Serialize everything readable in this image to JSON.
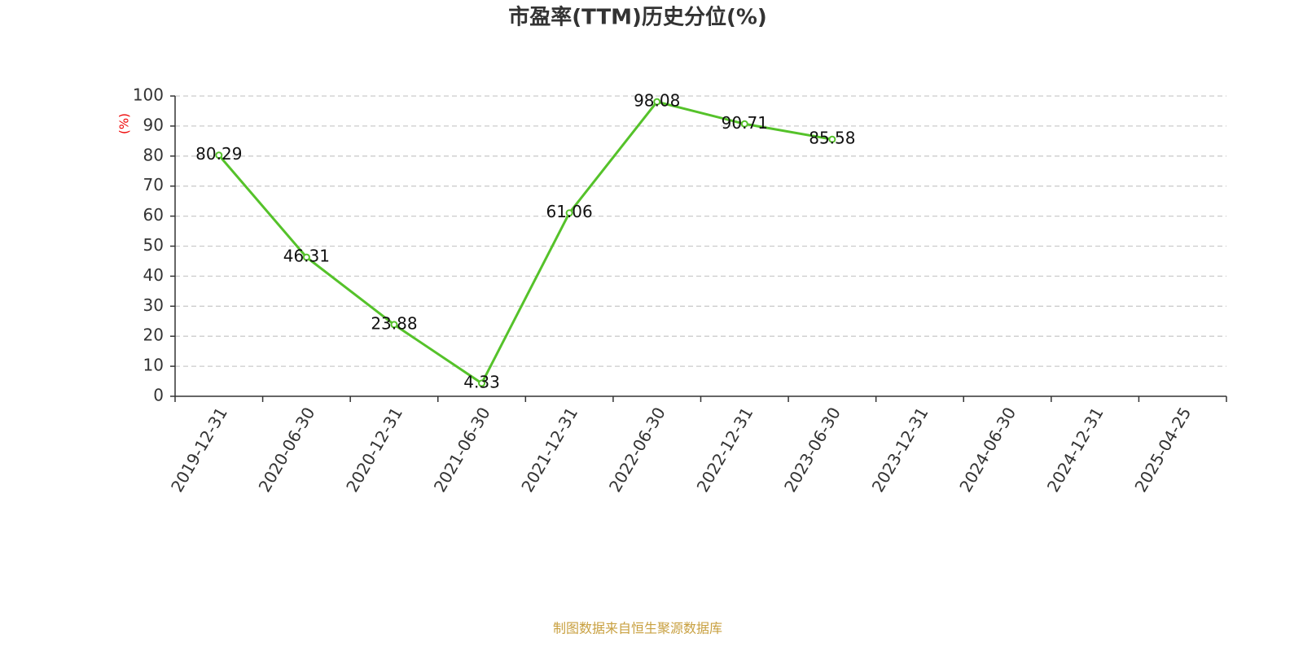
{
  "chart_data": {
    "type": "line",
    "title": "市盈率(TTM)历史分位(%)",
    "y_label": "(%)",
    "categories": [
      "2019-12-31",
      "2020-06-30",
      "2020-12-31",
      "2021-06-30",
      "2021-12-31",
      "2022-06-30",
      "2022-12-31",
      "2023-06-30",
      "2023-12-31",
      "2024-06-30",
      "2024-12-31",
      "2025-04-25"
    ],
    "series": [
      {
        "name": "市盈率(TTM)历史分位",
        "color": "#55c22a",
        "values": [
          80.29,
          46.31,
          23.88,
          4.33,
          61.06,
          98.08,
          90.71,
          85.58,
          null,
          null,
          null,
          null
        ]
      }
    ],
    "ylim": [
      0,
      100
    ],
    "yticks": [
      0,
      10,
      20,
      30,
      40,
      50,
      60,
      70,
      80,
      90,
      100
    ],
    "grid": true,
    "source": "制图数据来自恒生聚源数据库"
  }
}
